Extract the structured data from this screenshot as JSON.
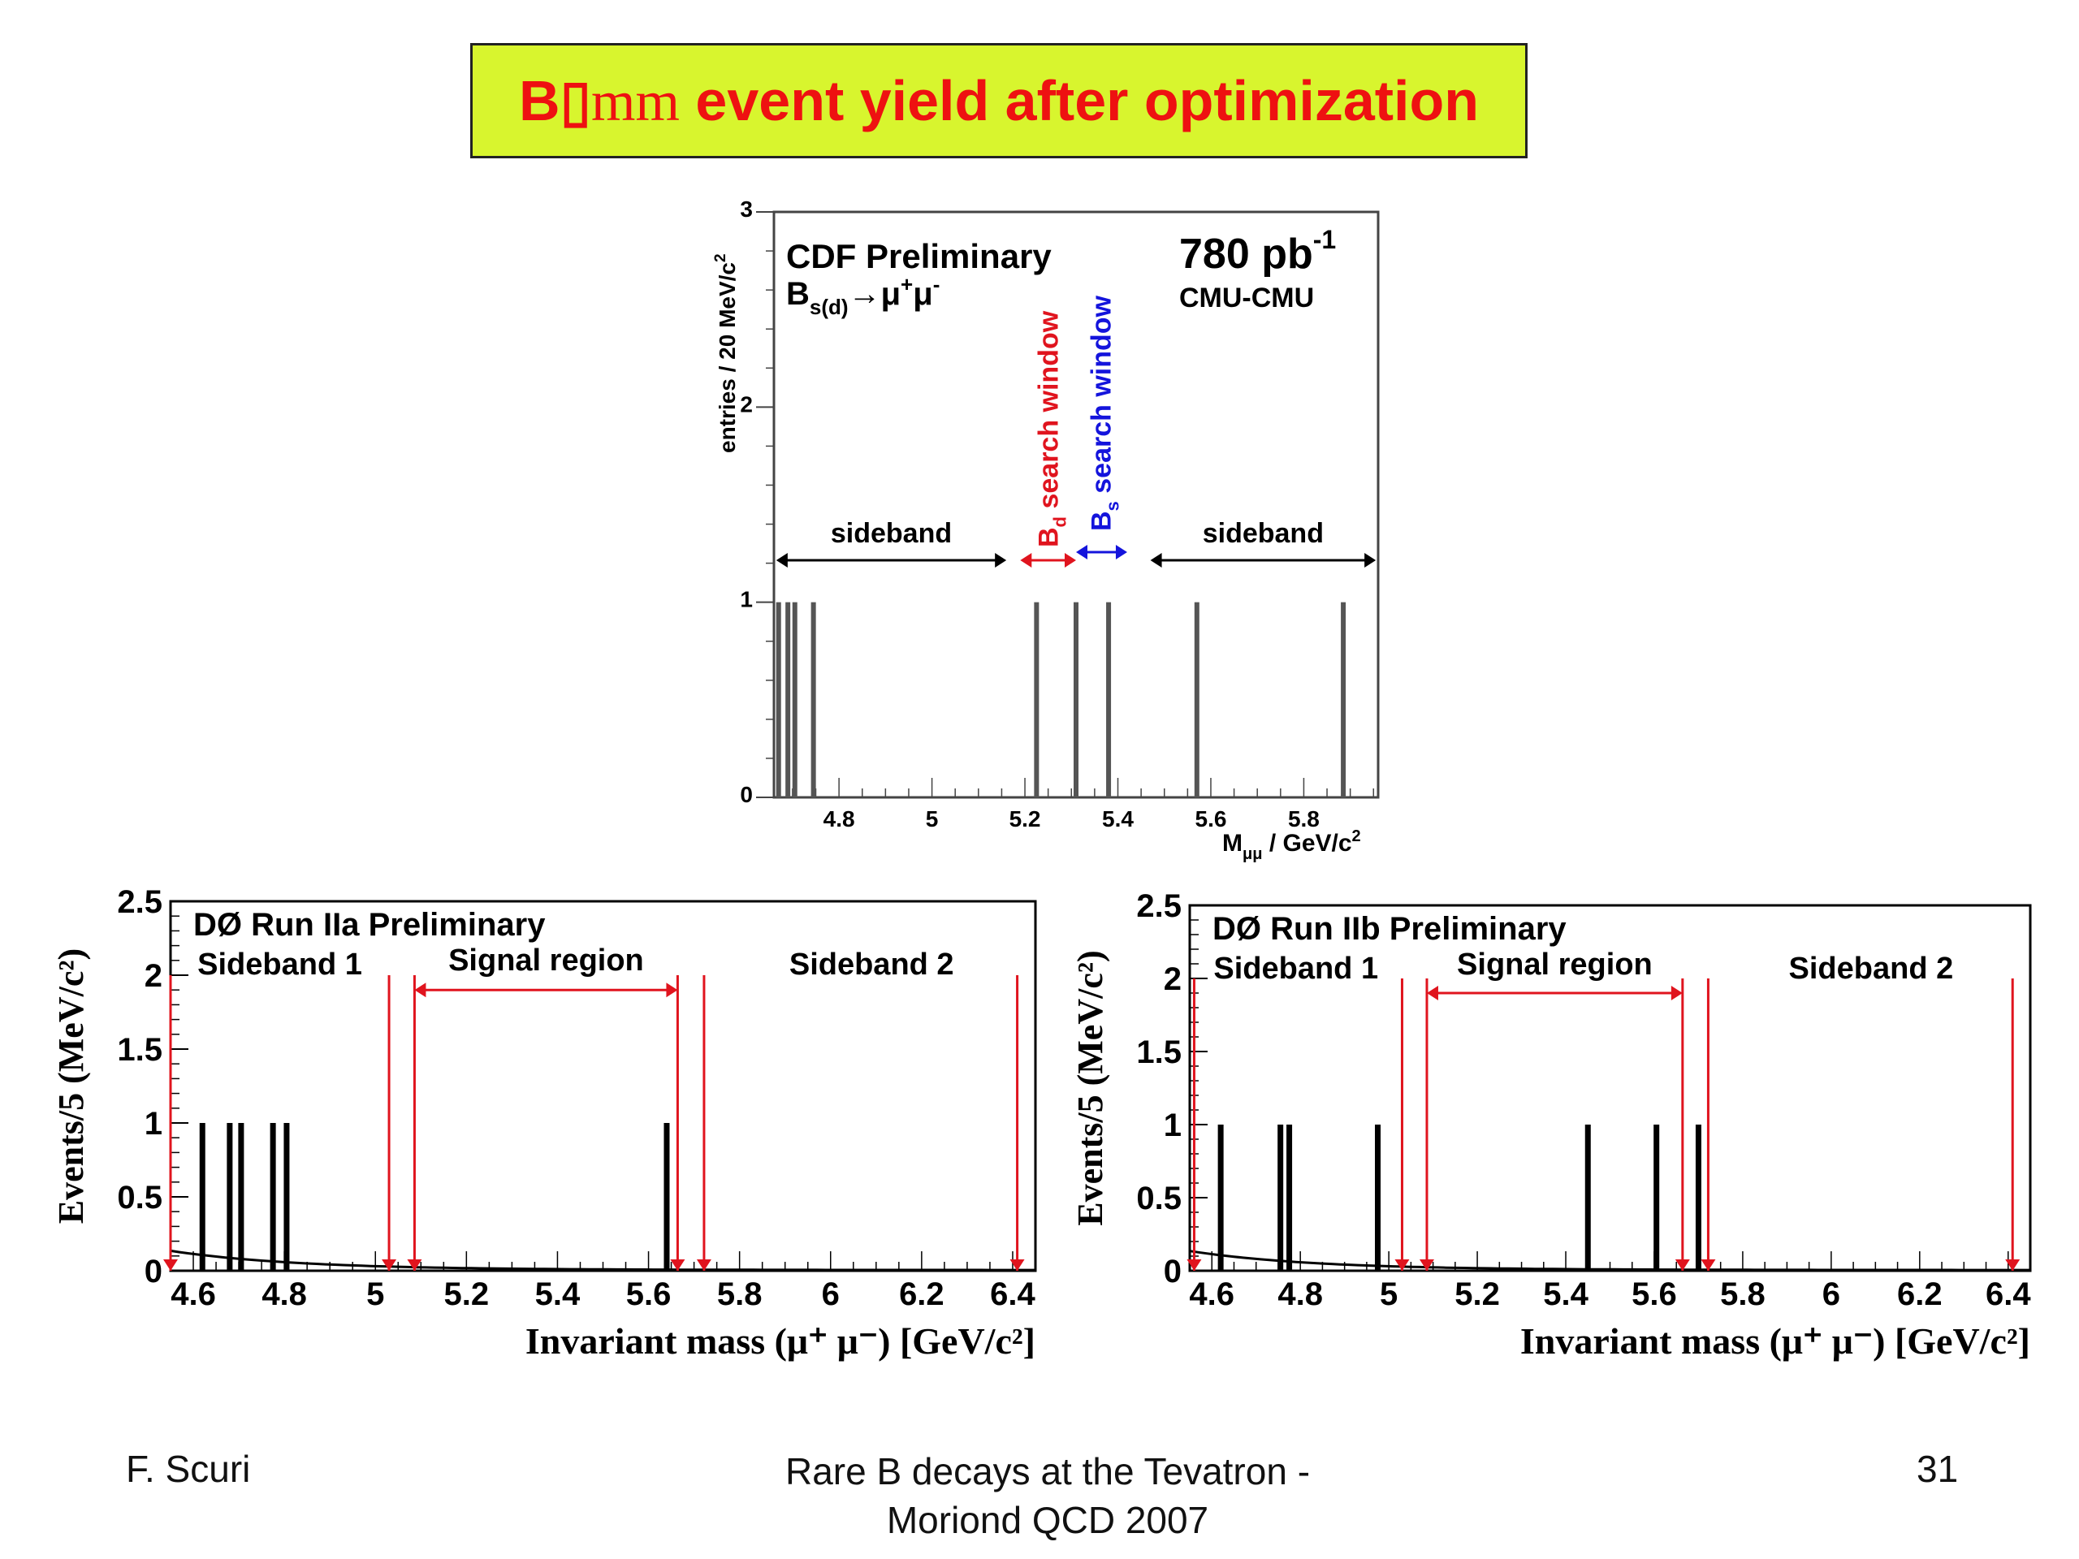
{
  "slide": {
    "title_prefix": "B",
    "title_glyph": "▯",
    "title_mm": "mm",
    "title_suffix": " event yield after optimization",
    "title_bg": "#d8f52e",
    "title_color": "#ee1111"
  },
  "footer": {
    "author": "F. Scuri",
    "line1": "Rare B decays at the Tevatron -",
    "line2": "Moriond QCD 2007",
    "page": "31"
  },
  "chart_data": [
    {
      "type": "bar",
      "experiment": "CDF",
      "title_line1": "CDF Preliminary",
      "title_line2": "Bs(d)→μ+μ-",
      "lumi": "780 pb",
      "lumi_exp": "-1",
      "channel": "CMU-CMU",
      "ylabel": "entries / 20 MeV/c²",
      "xlabel": "Mμμ / GeV/c²",
      "xlim": [
        4.66,
        5.96
      ],
      "ylim": [
        0,
        3
      ],
      "xticks": [
        "4.8",
        "5",
        "5.2",
        "5.4",
        "5.6",
        "5.8"
      ],
      "yticks": [
        "0",
        "1",
        "2",
        "3"
      ],
      "events": [
        4.67,
        4.69,
        4.705,
        4.745,
        5.225,
        5.31,
        5.38,
        5.57,
        5.885
      ],
      "event_values": [
        1,
        1,
        1,
        1,
        1,
        1,
        1,
        1,
        1
      ],
      "sideband_label": "sideband",
      "bd_window_label": "Bd search window",
      "bs_window_label": "Bs search window",
      "colors": {
        "bd": "#e0141e",
        "bs": "#1414dc"
      }
    },
    {
      "type": "bar",
      "experiment": "D0",
      "title": "DØ Run IIa Preliminary",
      "sideband1_label": "Sideband 1",
      "signal_label": "Signal region",
      "sideband2_label": "Sideband 2",
      "ylabel": "Events/5 (MeV/c²)",
      "xlabel": "Invariant mass (μ⁺ μ⁻) [GeV/c²]",
      "xlim": [
        4.55,
        6.45
      ],
      "ylim": [
        0,
        2.5
      ],
      "xticks": [
        "4.6",
        "4.8",
        "5",
        "5.2",
        "5.4",
        "5.6",
        "5.8",
        "6",
        "6.2",
        "6.4"
      ],
      "yticks": [
        "0",
        "0.5",
        "1",
        "1.5",
        "2",
        "2.5"
      ],
      "events": [
        4.62,
        4.68,
        4.705,
        4.775,
        4.805,
        5.64
      ],
      "event_values": [
        1,
        1,
        1,
        1,
        1,
        1
      ],
      "region_edges": [
        4.55,
        5.03,
        5.086,
        5.664,
        5.722,
        6.41
      ]
    },
    {
      "type": "bar",
      "experiment": "D0",
      "title": "DØ Run IIb Preliminary",
      "sideband1_label": "Sideband 1",
      "signal_label": "Signal region",
      "sideband2_label": "Sideband 2",
      "ylabel": "Events/5 (MeV/c²)",
      "xlabel": "Invariant mass (μ⁺ μ⁻) [GeV/c²]",
      "xlim": [
        4.55,
        6.45
      ],
      "ylim": [
        0,
        2.5
      ],
      "xticks": [
        "4.6",
        "4.8",
        "5",
        "5.2",
        "5.4",
        "5.6",
        "5.8",
        "6",
        "6.2",
        "6.4"
      ],
      "yticks": [
        "0",
        "0.5",
        "1",
        "1.5",
        "2",
        "2.5"
      ],
      "events": [
        4.62,
        4.755,
        4.775,
        4.975,
        5.45,
        5.605,
        5.7
      ],
      "event_values": [
        1,
        1,
        1,
        1,
        1,
        1,
        1
      ],
      "region_edges": [
        4.56,
        5.03,
        5.086,
        5.664,
        5.722,
        6.41
      ]
    }
  ]
}
